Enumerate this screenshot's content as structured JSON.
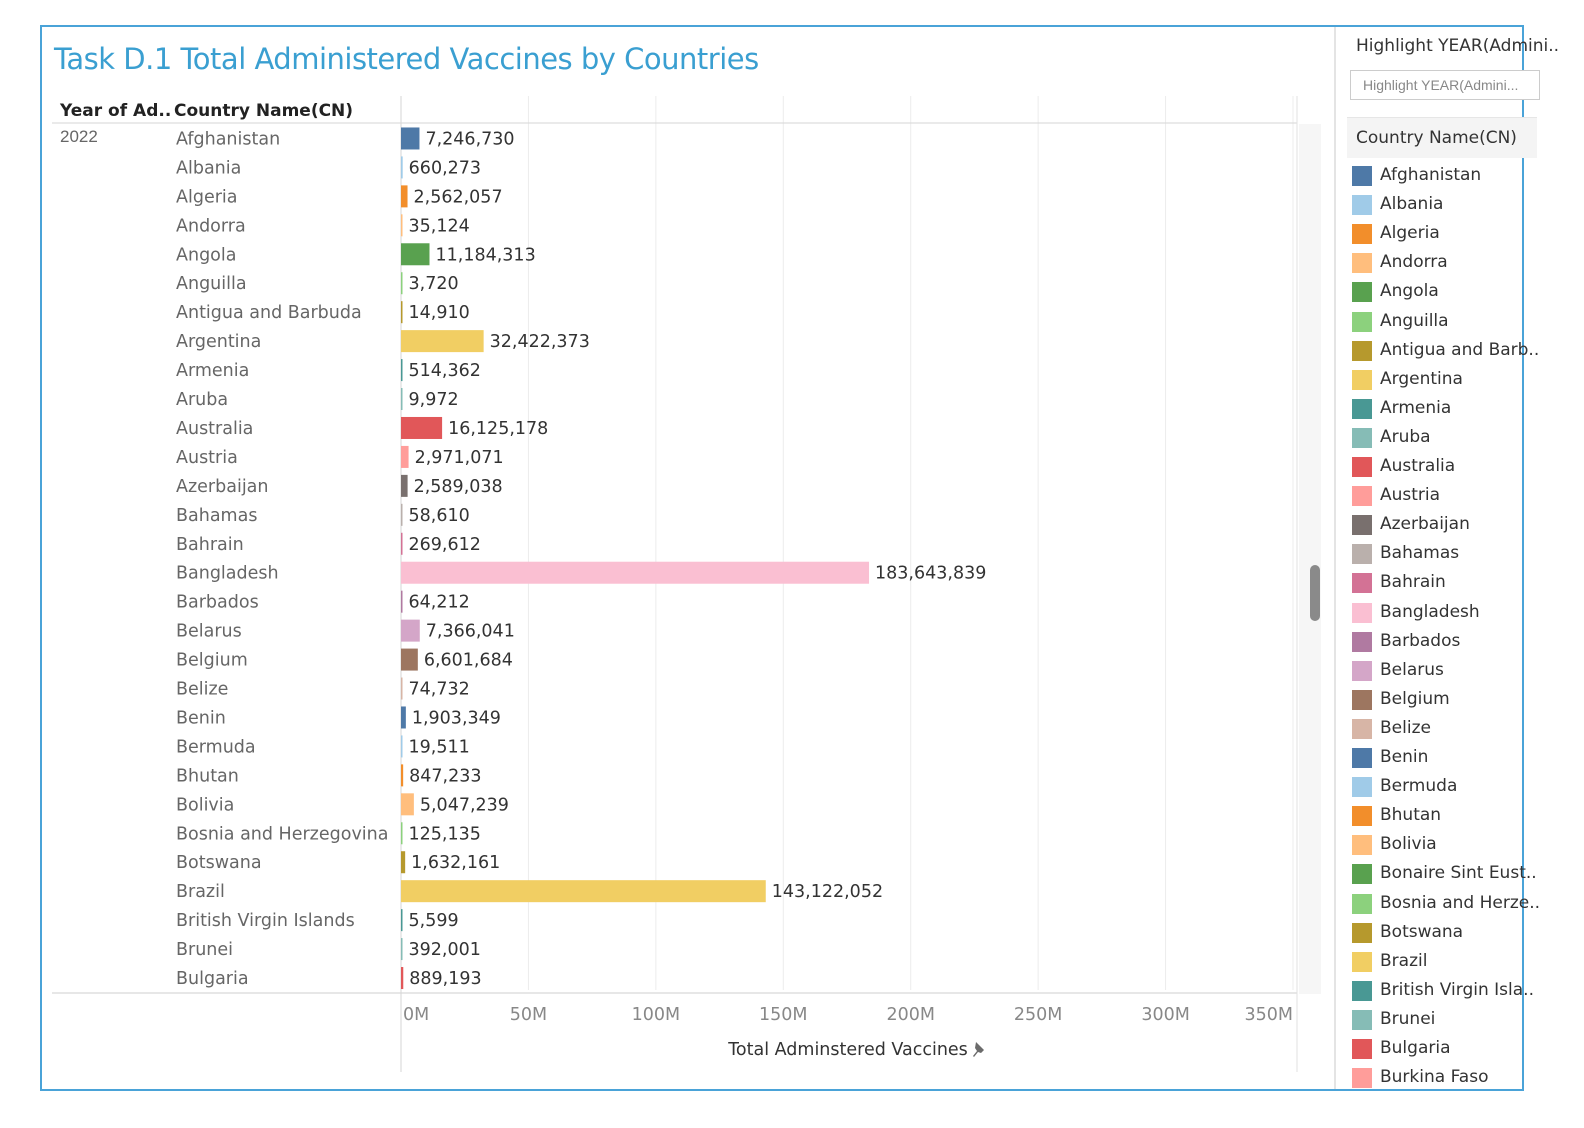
{
  "title": "Task D.1 Total Administered Vaccines by Countries",
  "headers": {
    "year": "Year of Ad..",
    "country": "Country Name(CN)"
  },
  "year_value": "2022",
  "highlight": {
    "title": "Highlight YEAR(Admini..",
    "placeholder": "Highlight YEAR(Admini..."
  },
  "legend": {
    "title": "Country Name(CN)",
    "items": [
      {
        "label": "Afghanistan",
        "color": "#4e79a7"
      },
      {
        "label": "Albania",
        "color": "#a0cbe8"
      },
      {
        "label": "Algeria",
        "color": "#f28e2b"
      },
      {
        "label": "Andorra",
        "color": "#ffbe7d"
      },
      {
        "label": "Angola",
        "color": "#59a14f"
      },
      {
        "label": "Anguilla",
        "color": "#8cd17d"
      },
      {
        "label": "Antigua and Barb..",
        "color": "#b6992d"
      },
      {
        "label": "Argentina",
        "color": "#f1ce63"
      },
      {
        "label": "Armenia",
        "color": "#499894"
      },
      {
        "label": "Aruba",
        "color": "#86bcb6"
      },
      {
        "label": "Australia",
        "color": "#e15759"
      },
      {
        "label": "Austria",
        "color": "#ff9d9a"
      },
      {
        "label": "Azerbaijan",
        "color": "#79706e"
      },
      {
        "label": "Bahamas",
        "color": "#bab0ac"
      },
      {
        "label": "Bahrain",
        "color": "#d37295"
      },
      {
        "label": "Bangladesh",
        "color": "#fabfd2"
      },
      {
        "label": "Barbados",
        "color": "#b07aa1"
      },
      {
        "label": "Belarus",
        "color": "#d4a6c8"
      },
      {
        "label": "Belgium",
        "color": "#9d7660"
      },
      {
        "label": "Belize",
        "color": "#d7b5a6"
      },
      {
        "label": "Benin",
        "color": "#4e79a7"
      },
      {
        "label": "Bermuda",
        "color": "#a0cbe8"
      },
      {
        "label": "Bhutan",
        "color": "#f28e2b"
      },
      {
        "label": "Bolivia",
        "color": "#ffbe7d"
      },
      {
        "label": "Bonaire Sint Eust..",
        "color": "#59a14f"
      },
      {
        "label": "Bosnia and Herze..",
        "color": "#8cd17d"
      },
      {
        "label": "Botswana",
        "color": "#b6992d"
      },
      {
        "label": "Brazil",
        "color": "#f1ce63"
      },
      {
        "label": "British Virgin Isla..",
        "color": "#499894"
      },
      {
        "label": "Brunei",
        "color": "#86bcb6"
      },
      {
        "label": "Bulgaria",
        "color": "#e15759"
      },
      {
        "label": "Burkina Faso",
        "color": "#ff9d9a"
      }
    ]
  },
  "chart_data": {
    "type": "bar",
    "orientation": "horizontal",
    "title": "Task D.1 Total Administered Vaccines by Countries",
    "xlabel": "Total Adminstered Vaccines",
    "ylabel": "Country Name(CN)",
    "xlim": [
      0,
      350000000
    ],
    "x_ticks": [
      "0M",
      "50M",
      "100M",
      "150M",
      "200M",
      "250M",
      "300M",
      "350M"
    ],
    "grid": true,
    "categories": [
      "Afghanistan",
      "Albania",
      "Algeria",
      "Andorra",
      "Angola",
      "Anguilla",
      "Antigua and Barbuda",
      "Argentina",
      "Armenia",
      "Aruba",
      "Australia",
      "Austria",
      "Azerbaijan",
      "Bahamas",
      "Bahrain",
      "Bangladesh",
      "Barbados",
      "Belarus",
      "Belgium",
      "Belize",
      "Benin",
      "Bermuda",
      "Bhutan",
      "Bolivia",
      "Bosnia and Herzegovina",
      "Botswana",
      "Brazil",
      "British Virgin Islands",
      "Brunei",
      "Bulgaria"
    ],
    "values": [
      7246730,
      660273,
      2562057,
      35124,
      11184313,
      3720,
      14910,
      32422373,
      514362,
      9972,
      16125178,
      2971071,
      2589038,
      58610,
      269612,
      183643839,
      64212,
      7366041,
      6601684,
      74732,
      1903349,
      19511,
      847233,
      5047239,
      125135,
      1632161,
      143122052,
      5599,
      392001,
      889193
    ],
    "value_labels": [
      "7,246,730",
      "660,273",
      "2,562,057",
      "35,124",
      "11,184,313",
      "3,720",
      "14,910",
      "32,422,373",
      "514,362",
      "9,972",
      "16,125,178",
      "2,971,071",
      "2,589,038",
      "58,610",
      "269,612",
      "183,643,839",
      "64,212",
      "7,366,041",
      "6,601,684",
      "74,732",
      "1,903,349",
      "19,511",
      "847,233",
      "5,047,239",
      "125,135",
      "1,632,161",
      "143,122,052",
      "5,599",
      "392,001",
      "889,193"
    ],
    "colors": [
      "#4e79a7",
      "#a0cbe8",
      "#f28e2b",
      "#ffbe7d",
      "#59a14f",
      "#8cd17d",
      "#b6992d",
      "#f1ce63",
      "#499894",
      "#86bcb6",
      "#e15759",
      "#ff9d9a",
      "#79706e",
      "#bab0ac",
      "#d37295",
      "#fabfd2",
      "#b07aa1",
      "#d4a6c8",
      "#9d7660",
      "#d7b5a6",
      "#4e79a7",
      "#a0cbe8",
      "#f28e2b",
      "#ffbe7d",
      "#8cd17d",
      "#b6992d",
      "#f1ce63",
      "#499894",
      "#86bcb6",
      "#e15759"
    ]
  }
}
